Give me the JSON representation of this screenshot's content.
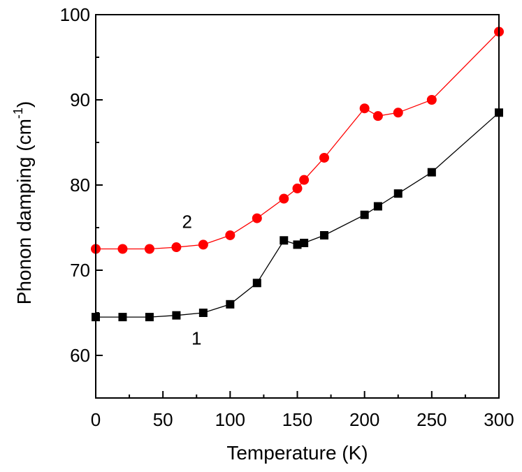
{
  "chart_data": {
    "type": "line",
    "title": "",
    "xlabel": "Temperature (K)",
    "ylabel": {
      "main": "Phonon damping (cm",
      "sup": "-1",
      "close": ")"
    },
    "xlim": [
      0,
      300
    ],
    "ylim": [
      55,
      100
    ],
    "xticks": [
      0,
      50,
      100,
      150,
      200,
      250,
      300
    ],
    "yticks": [
      60,
      70,
      80,
      90,
      100
    ],
    "grid": false,
    "series": [
      {
        "label": "1",
        "marker": "square",
        "color": "#000000",
        "x": [
          0,
          20,
          40,
          60,
          80,
          100,
          120,
          140,
          150,
          155,
          170,
          200,
          210,
          225,
          250,
          300
        ],
        "y": [
          64.5,
          64.5,
          64.5,
          64.7,
          65.0,
          66.0,
          68.5,
          73.5,
          73.0,
          73.2,
          74.1,
          76.5,
          77.5,
          79.0,
          81.5,
          88.5
        ]
      },
      {
        "label": "2",
        "marker": "circle",
        "color": "#ff0000",
        "x": [
          0,
          20,
          40,
          60,
          80,
          100,
          120,
          140,
          150,
          155,
          170,
          200,
          210,
          225,
          250,
          300
        ],
        "y": [
          72.5,
          72.5,
          72.5,
          72.7,
          73.0,
          74.1,
          76.1,
          78.4,
          79.6,
          80.6,
          83.2,
          89.0,
          88.1,
          88.5,
          90.0,
          98.0
        ]
      }
    ]
  }
}
